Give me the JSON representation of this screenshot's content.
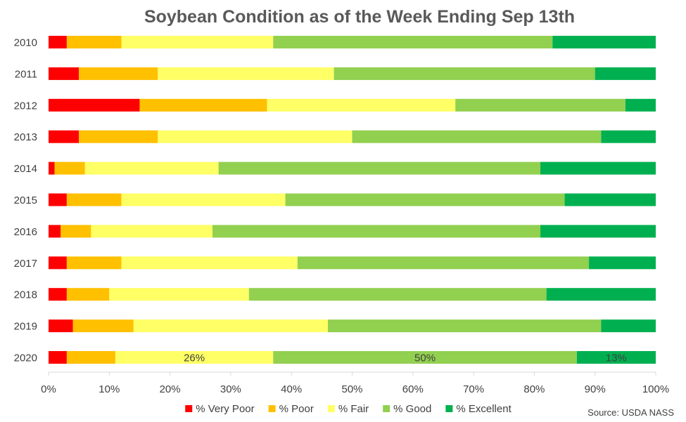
{
  "chart_data": {
    "type": "bar",
    "orientation": "horizontal",
    "stacked": true,
    "title": "Soybean Condition as of the Week Ending Sep 13th",
    "categories": [
      "2010",
      "2011",
      "2012",
      "2013",
      "2014",
      "2015",
      "2016",
      "2017",
      "2018",
      "2019",
      "2020"
    ],
    "series": [
      {
        "name": "% Very Poor",
        "color": "#ff0000",
        "values": [
          3,
          5,
          15,
          5,
          1,
          3,
          2,
          3,
          3,
          4,
          3
        ]
      },
      {
        "name": "% Poor",
        "color": "#ffc000",
        "values": [
          9,
          13,
          21,
          13,
          5,
          9,
          5,
          9,
          7,
          10,
          8
        ]
      },
      {
        "name": "% Fair",
        "color": "#ffff66",
        "values": [
          25,
          29,
          31,
          32,
          22,
          27,
          20,
          29,
          23,
          32,
          26
        ]
      },
      {
        "name": "% Good",
        "color": "#92d050",
        "values": [
          46,
          43,
          28,
          41,
          53,
          46,
          54,
          48,
          49,
          45,
          50
        ]
      },
      {
        "name": "% Excellent",
        "color": "#00b050",
        "values": [
          17,
          10,
          5,
          9,
          19,
          15,
          19,
          11,
          18,
          9,
          13
        ]
      }
    ],
    "data_labels": [
      {
        "category": "2020",
        "series": "% Fair",
        "text": "26%"
      },
      {
        "category": "2020",
        "series": "% Good",
        "text": "50%"
      },
      {
        "category": "2020",
        "series": "% Excellent",
        "text": "13%"
      }
    ],
    "x_ticks": [
      "0%",
      "10%",
      "20%",
      "30%",
      "40%",
      "50%",
      "60%",
      "70%",
      "80%",
      "90%",
      "100%"
    ],
    "xlim": [
      0,
      100
    ],
    "grid": false,
    "legend_position": "bottom",
    "source": "Source: USDA NASS"
  }
}
